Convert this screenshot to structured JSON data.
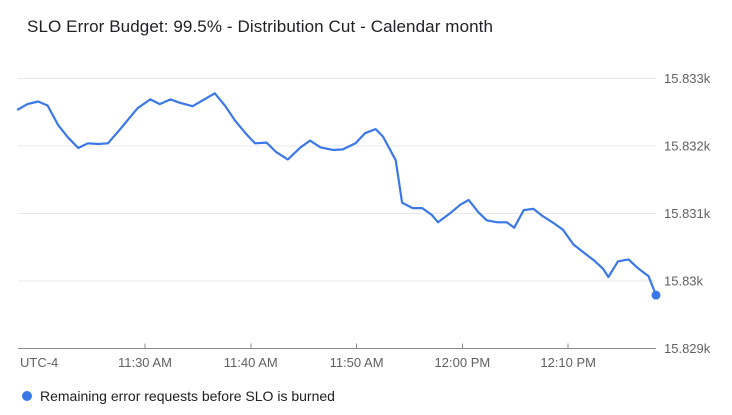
{
  "title": "SLO Error Budget: 99.5% - Distribution Cut - Calendar month",
  "legend": {
    "label": "Remaining error requests before SLO is burned"
  },
  "colors": {
    "series": "#3b78e7",
    "grid": "#e8e8e8",
    "axis": "#8c8c8c",
    "tick_label": "#616161",
    "title_text": "#202124"
  },
  "chart_data": {
    "type": "line",
    "title": "SLO Error Budget: 99.5% - Distribution Cut - Calendar month",
    "legend_position": "bottom-left",
    "grid": "horizontal-only",
    "x_axis": {
      "corner_label": "UTC-4",
      "tick_labels": [
        "11:30 AM",
        "11:40 AM",
        "11:50 AM",
        "12:00 PM",
        "12:10 PM"
      ],
      "tick_minutes": [
        12,
        22,
        32,
        42,
        52
      ],
      "range_minutes": [
        0,
        60.3
      ]
    },
    "y_axis": {
      "side": "right",
      "tick_labels": [
        "15.833k",
        "15.832k",
        "15.831k",
        "15.83k",
        "15.829k"
      ],
      "tick_values": [
        15833,
        15832,
        15831,
        15830,
        15829
      ],
      "range": [
        15829,
        15833
      ]
    },
    "series": [
      {
        "name": "Remaining error requests before SLO is burned",
        "color": "#3b78e7",
        "end_point_marker": true,
        "points": [
          [
            0,
            15832.54
          ],
          [
            0.9,
            15832.62
          ],
          [
            1.9,
            15832.66
          ],
          [
            2.8,
            15832.6
          ],
          [
            3.8,
            15832.31
          ],
          [
            4.7,
            15832.13
          ],
          [
            5.7,
            15831.97
          ],
          [
            6.6,
            15832.04
          ],
          [
            7.6,
            15832.03
          ],
          [
            8.5,
            15832.04
          ],
          [
            9.5,
            15832.22
          ],
          [
            10.4,
            15832.39
          ],
          [
            11.3,
            15832.56
          ],
          [
            12.5,
            15832.69
          ],
          [
            13.4,
            15832.62
          ],
          [
            14.4,
            15832.69
          ],
          [
            15.3,
            15832.64
          ],
          [
            16.5,
            15832.59
          ],
          [
            17.6,
            15832.69
          ],
          [
            18.6,
            15832.78
          ],
          [
            19.6,
            15832.59
          ],
          [
            20.5,
            15832.38
          ],
          [
            21.5,
            15832.19
          ],
          [
            22.4,
            15832.04
          ],
          [
            23.5,
            15832.05
          ],
          [
            24.4,
            15831.91
          ],
          [
            25.5,
            15831.8
          ],
          [
            26.7,
            15831.98
          ],
          [
            27.6,
            15832.08
          ],
          [
            28.6,
            15831.98
          ],
          [
            29.8,
            15831.94
          ],
          [
            30.7,
            15831.95
          ],
          [
            31.9,
            15832.04
          ],
          [
            32.8,
            15832.19
          ],
          [
            33.8,
            15832.25
          ],
          [
            34.5,
            15832.14
          ],
          [
            35.7,
            15831.79
          ],
          [
            36.3,
            15831.16
          ],
          [
            37.3,
            15831.08
          ],
          [
            38.2,
            15831.08
          ],
          [
            39.1,
            15830.98
          ],
          [
            39.7,
            15830.87
          ],
          [
            40.9,
            15831.01
          ],
          [
            41.8,
            15831.13
          ],
          [
            42.6,
            15831.2
          ],
          [
            43.5,
            15831.02
          ],
          [
            44.3,
            15830.9
          ],
          [
            45.3,
            15830.87
          ],
          [
            46.2,
            15830.87
          ],
          [
            46.9,
            15830.79
          ],
          [
            47.8,
            15831.05
          ],
          [
            48.7,
            15831.07
          ],
          [
            49.6,
            15830.96
          ],
          [
            50.6,
            15830.86
          ],
          [
            51.5,
            15830.76
          ],
          [
            52.5,
            15830.54
          ],
          [
            53.4,
            15830.43
          ],
          [
            54.4,
            15830.31
          ],
          [
            55.3,
            15830.18
          ],
          [
            55.8,
            15830.06
          ],
          [
            56.7,
            15830.29
          ],
          [
            57.7,
            15830.32
          ],
          [
            58.6,
            15830.19
          ],
          [
            59.6,
            15830.07
          ],
          [
            60.3,
            15829.79
          ]
        ]
      }
    ]
  }
}
